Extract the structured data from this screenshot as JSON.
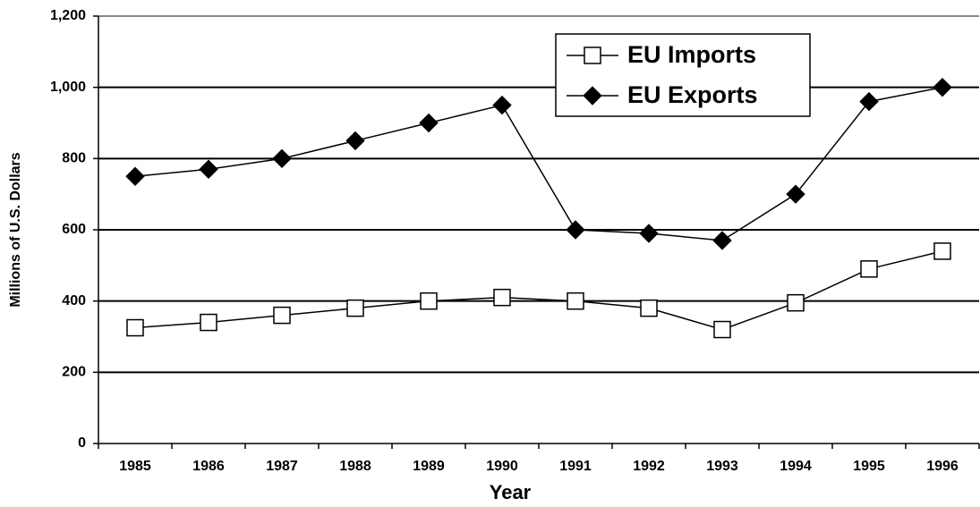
{
  "chart_data": {
    "type": "line",
    "x_label": "Year",
    "y_label": "Millions of U.S. Dollars",
    "categories": [
      "1985",
      "1986",
      "1987",
      "1988",
      "1989",
      "1990",
      "1991",
      "1992",
      "1993",
      "1994",
      "1995",
      "1996"
    ],
    "series": [
      {
        "name": "EU Imports",
        "color": "#000000",
        "marker": "square",
        "values": [
          325,
          340,
          360,
          380,
          400,
          410,
          400,
          380,
          320,
          395,
          490,
          540
        ]
      },
      {
        "name": "EU Exports",
        "color": "#000000",
        "marker": "diamond",
        "values": [
          750,
          770,
          800,
          850,
          900,
          950,
          600,
          590,
          570,
          700,
          960,
          1000
        ]
      }
    ],
    "ylim": [
      0,
      1200
    ],
    "yticks": [
      0,
      200,
      400,
      600,
      800,
      {
        "value": 1000,
        "label": "1,000"
      },
      {
        "value": 1200,
        "label": "1,200"
      }
    ],
    "grid": true,
    "legend": "upper right"
  }
}
